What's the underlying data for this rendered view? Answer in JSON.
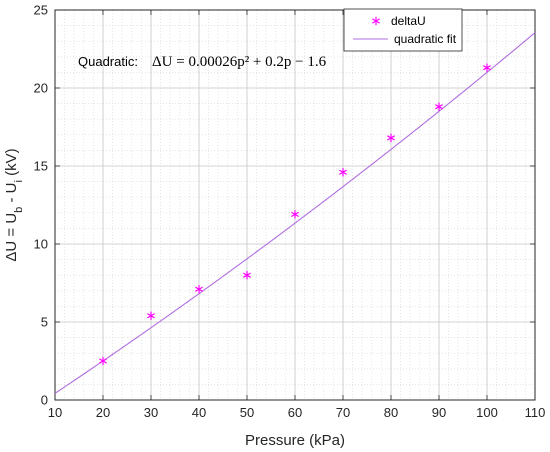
{
  "chart_data": {
    "type": "scatter",
    "xlabel": "Pressure (kPa)",
    "ylabel": "ΔU = U_b - U_i (kV)",
    "xlim": [
      10,
      110
    ],
    "ylim": [
      0,
      25
    ],
    "xticks": [
      10,
      20,
      30,
      40,
      50,
      60,
      70,
      80,
      90,
      100,
      110
    ],
    "yticks": [
      0,
      5,
      10,
      15,
      20,
      25
    ],
    "grid": true,
    "minor_grid": true,
    "legend_position": "top-right",
    "series": [
      {
        "name": "deltaU",
        "kind": "scatter",
        "marker": "asterisk",
        "color": "#ff00ff",
        "x": [
          20,
          30,
          40,
          50,
          60,
          70,
          80,
          90,
          100
        ],
        "y": [
          2.5,
          5.4,
          7.1,
          8.0,
          11.9,
          14.6,
          16.8,
          18.8,
          21.3
        ]
      },
      {
        "name": "quadratic fit",
        "kind": "line",
        "color": "#b06ee0",
        "coefficients": {
          "a": 0.00026,
          "b": 0.2,
          "c": -1.6
        }
      }
    ],
    "annotation": {
      "label": "Quadratic:",
      "equation": "ΔU = 0.00026p² + 0.2p − 1.6"
    }
  }
}
